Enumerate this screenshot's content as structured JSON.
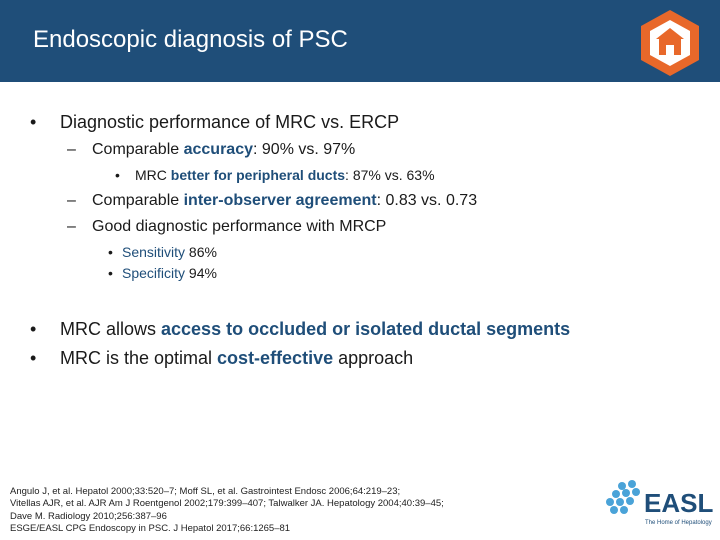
{
  "slide": {
    "title": "Endoscopic diagnosis of PSC",
    "bullets": [
      {
        "marker": "•",
        "text": "Diagnostic performance of MRC vs. ERCP"
      },
      {
        "marker": "–",
        "pre": "Comparable ",
        "highlight": "accuracy",
        "post": ": 90% vs. 97%"
      },
      {
        "marker": "•",
        "pre": "MRC ",
        "highlight": "better for peripheral ducts",
        "post": ": 87% vs. 63%"
      },
      {
        "marker": "–",
        "pre": "Comparable ",
        "highlight": "inter-observer agreement",
        "post": ": 0.83 vs. 0.73"
      },
      {
        "marker": "–",
        "text": "Good diagnostic performance with MRCP"
      },
      {
        "marker": "•",
        "highlight": "Sensitivity",
        "post": " 86%"
      },
      {
        "marker": "•",
        "highlight": "Specificity",
        "post": " 94%"
      },
      {
        "marker": "•",
        "pre": "MRC allows ",
        "highlight": "access to occluded or isolated ductal segments",
        "post": ""
      },
      {
        "marker": "•",
        "pre": "MRC is the optimal ",
        "highlight": "cost-effective",
        "post": " approach"
      }
    ],
    "references": [
      "Angulo J, et al. Hepatol 2000;33:520–7; Moff SL, et al. Gastrointest Endosc 2006;64:219–23;",
      "Vitellas AJR, et al. AJR Am J Roentgenol 2002;179:399–407; Talwalker JA. Hepatology 2004;40:39–45;",
      "Dave M. Radiology 2010;256:387–96",
      "ESGE/EASL CPG Endoscopy in PSC. J Hepatol 2017;66:1265–81"
    ],
    "logo": {
      "name": "EASL",
      "tagline": "The Home of Hepatology"
    },
    "colors": {
      "header": "#1f4e79",
      "accent": "#1f4e79",
      "badge": "#e8682a",
      "logo_dots": "#4aa3d8"
    }
  }
}
